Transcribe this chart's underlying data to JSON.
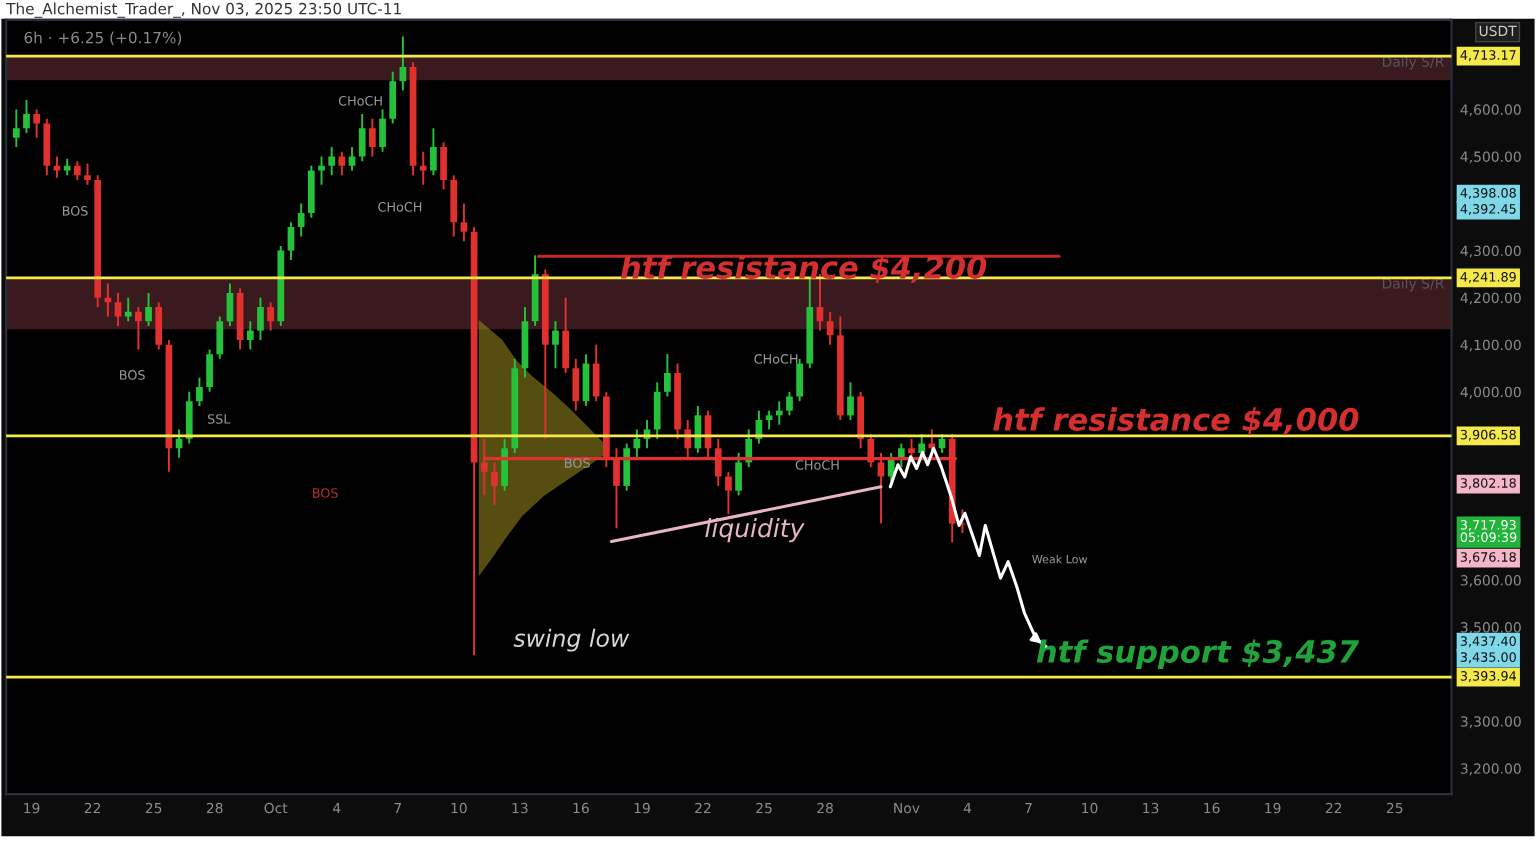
{
  "chart_data": {
    "type": "candlestick",
    "title": "6h · +6.25 (+0.17%)",
    "x": [
      "2025-09-18T06:00",
      "2025-09-18T18:00",
      "2025-09-19T06:00",
      "2025-09-19T18:00",
      "2025-09-20T06:00",
      "2025-09-20T18:00",
      "2025-09-21T06:00",
      "2025-09-21T18:00",
      "2025-09-22T06:00",
      "2025-09-22T18:00",
      "2025-09-23T06:00",
      "2025-09-23T18:00",
      "2025-09-24T06:00",
      "2025-09-24T18:00",
      "2025-09-25T06:00",
      "2025-09-25T18:00",
      "2025-09-26T06:00",
      "2025-09-26T18:00",
      "2025-09-27T06:00",
      "2025-09-27T18:00",
      "2025-09-28T06:00",
      "2025-09-28T18:00",
      "2025-09-29T06:00",
      "2025-09-29T18:00",
      "2025-09-30T06:00",
      "2025-09-30T18:00",
      "2025-10-01T06:00",
      "2025-10-01T18:00",
      "2025-10-02T06:00",
      "2025-10-02T18:00",
      "2025-10-03T06:00",
      "2025-10-03T18:00",
      "2025-10-04T06:00",
      "2025-10-04T18:00",
      "2025-10-05T06:00",
      "2025-10-05T18:00",
      "2025-10-06T06:00",
      "2025-10-06T18:00",
      "2025-10-07T06:00",
      "2025-10-07T18:00",
      "2025-10-08T06:00",
      "2025-10-08T18:00",
      "2025-10-09T06:00",
      "2025-10-09T18:00",
      "2025-10-10T06:00",
      "2025-10-10T18:00",
      "2025-10-11T06:00",
      "2025-10-11T18:00",
      "2025-10-12T06:00",
      "2025-10-12T18:00",
      "2025-10-13T06:00",
      "2025-10-13T18:00",
      "2025-10-14T06:00",
      "2025-10-14T18:00",
      "2025-10-15T06:00",
      "2025-10-15T18:00",
      "2025-10-16T06:00",
      "2025-10-16T18:00",
      "2025-10-17T06:00",
      "2025-10-17T18:00",
      "2025-10-18T06:00",
      "2025-10-18T18:00",
      "2025-10-19T06:00",
      "2025-10-19T18:00",
      "2025-10-20T06:00",
      "2025-10-20T18:00",
      "2025-10-21T06:00",
      "2025-10-21T18:00",
      "2025-10-22T06:00",
      "2025-10-22T18:00",
      "2025-10-23T06:00",
      "2025-10-23T18:00",
      "2025-10-24T06:00",
      "2025-10-24T18:00",
      "2025-10-25T06:00",
      "2025-10-25T18:00",
      "2025-10-26T06:00",
      "2025-10-26T18:00",
      "2025-10-27T06:00",
      "2025-10-27T18:00",
      "2025-10-28T06:00",
      "2025-10-28T18:00",
      "2025-10-29T06:00",
      "2025-10-29T18:00",
      "2025-10-30T06:00",
      "2025-10-30T18:00",
      "2025-10-31T06:00",
      "2025-10-31T18:00",
      "2025-11-01T06:00",
      "2025-11-01T18:00",
      "2025-11-02T06:00",
      "2025-11-02T18:00",
      "2025-11-03T06:00",
      "2025-11-03T18:00"
    ],
    "ohlc": [
      [
        4540,
        4600,
        4520,
        4560
      ],
      [
        4560,
        4620,
        4550,
        4590
      ],
      [
        4590,
        4600,
        4540,
        4570
      ],
      [
        4570,
        4580,
        4460,
        4480
      ],
      [
        4480,
        4500,
        4455,
        4470
      ],
      [
        4470,
        4495,
        4460,
        4480
      ],
      [
        4480,
        4490,
        4450,
        4460
      ],
      [
        4460,
        4485,
        4440,
        4450
      ],
      [
        4450,
        4460,
        4180,
        4200
      ],
      [
        4200,
        4230,
        4160,
        4190
      ],
      [
        4190,
        4210,
        4140,
        4160
      ],
      [
        4160,
        4200,
        4150,
        4170
      ],
      [
        4170,
        4180,
        4090,
        4150
      ],
      [
        4150,
        4210,
        4140,
        4180
      ],
      [
        4180,
        4190,
        4090,
        4100
      ],
      [
        4100,
        4110,
        3830,
        3880
      ],
      [
        3880,
        3920,
        3860,
        3900
      ],
      [
        3900,
        4000,
        3890,
        3980
      ],
      [
        3980,
        4030,
        3970,
        4010
      ],
      [
        4010,
        4090,
        4000,
        4080
      ],
      [
        4080,
        4160,
        4070,
        4150
      ],
      [
        4150,
        4230,
        4140,
        4210
      ],
      [
        4210,
        4220,
        4090,
        4110
      ],
      [
        4110,
        4150,
        4090,
        4130
      ],
      [
        4130,
        4200,
        4110,
        4180
      ],
      [
        4180,
        4190,
        4130,
        4150
      ],
      [
        4150,
        4310,
        4140,
        4300
      ],
      [
        4300,
        4360,
        4280,
        4350
      ],
      [
        4350,
        4400,
        4330,
        4380
      ],
      [
        4380,
        4480,
        4370,
        4470
      ],
      [
        4470,
        4500,
        4440,
        4480
      ],
      [
        4480,
        4520,
        4460,
        4500
      ],
      [
        4500,
        4510,
        4460,
        4480
      ],
      [
        4480,
        4520,
        4470,
        4500
      ],
      [
        4500,
        4590,
        4490,
        4560
      ],
      [
        4560,
        4580,
        4500,
        4520
      ],
      [
        4520,
        4600,
        4510,
        4580
      ],
      [
        4580,
        4680,
        4570,
        4660
      ],
      [
        4660,
        4755,
        4640,
        4690
      ],
      [
        4690,
        4700,
        4460,
        4480
      ],
      [
        4480,
        4510,
        4440,
        4470
      ],
      [
        4470,
        4560,
        4460,
        4520
      ],
      [
        4520,
        4530,
        4430,
        4450
      ],
      [
        4450,
        4460,
        4330,
        4360
      ],
      [
        4360,
        4400,
        4320,
        4340
      ],
      [
        4340,
        4350,
        3440,
        3850
      ],
      [
        3850,
        3900,
        3780,
        3830
      ],
      [
        3830,
        3850,
        3760,
        3800
      ],
      [
        3800,
        3900,
        3790,
        3880
      ],
      [
        3880,
        4070,
        3870,
        4050
      ],
      [
        4050,
        4180,
        4030,
        4150
      ],
      [
        4150,
        4290,
        4140,
        4250
      ],
      [
        4250,
        4260,
        3900,
        4100
      ],
      [
        4100,
        4150,
        4050,
        4130
      ],
      [
        4130,
        4200,
        4040,
        4050
      ],
      [
        4050,
        4070,
        3960,
        3980
      ],
      [
        3980,
        4080,
        3970,
        4060
      ],
      [
        4060,
        4100,
        3980,
        3990
      ],
      [
        3990,
        4000,
        3840,
        3860
      ],
      [
        3860,
        3880,
        3710,
        3800
      ],
      [
        3800,
        3890,
        3790,
        3880
      ],
      [
        3880,
        3920,
        3860,
        3900
      ],
      [
        3900,
        3940,
        3880,
        3920
      ],
      [
        3920,
        4020,
        3900,
        4000
      ],
      [
        4000,
        4080,
        3990,
        4040
      ],
      [
        4040,
        4060,
        3900,
        3920
      ],
      [
        3920,
        3940,
        3860,
        3880
      ],
      [
        3880,
        3970,
        3870,
        3950
      ],
      [
        3950,
        3960,
        3860,
        3880
      ],
      [
        3880,
        3900,
        3800,
        3820
      ],
      [
        3820,
        3830,
        3740,
        3790
      ],
      [
        3790,
        3870,
        3780,
        3850
      ],
      [
        3850,
        3920,
        3840,
        3900
      ],
      [
        3900,
        3960,
        3890,
        3940
      ],
      [
        3940,
        3960,
        3920,
        3950
      ],
      [
        3950,
        3980,
        3930,
        3960
      ],
      [
        3960,
        4000,
        3950,
        3990
      ],
      [
        3990,
        4070,
        3980,
        4060
      ],
      [
        4060,
        4240,
        4050,
        4180
      ],
      [
        4180,
        4250,
        4130,
        4150
      ],
      [
        4150,
        4170,
        4100,
        4120
      ],
      [
        4120,
        4160,
        3940,
        3950
      ],
      [
        3950,
        4020,
        3940,
        3990
      ],
      [
        3990,
        4000,
        3880,
        3900
      ],
      [
        3900,
        3910,
        3840,
        3850
      ],
      [
        3850,
        3870,
        3720,
        3820
      ],
      [
        3820,
        3870,
        3810,
        3860
      ],
      [
        3860,
        3890,
        3840,
        3880
      ],
      [
        3880,
        3900,
        3850,
        3870
      ],
      [
        3870,
        3910,
        3860,
        3890
      ],
      [
        3890,
        3920,
        3860,
        3880
      ],
      [
        3880,
        3910,
        3870,
        3900
      ],
      [
        3900,
        3910,
        3680,
        3720
      ],
      [
        3720,
        3750,
        3700,
        3717.93
      ]
    ],
    "colors": [
      "#26c13a",
      "#26c13a",
      "#e0312f",
      "#e0312f",
      "#e0312f",
      "#26c13a",
      "#e0312f",
      "#e0312f",
      "#e0312f",
      "#e0312f",
      "#e0312f",
      "#26c13a",
      "#e0312f",
      "#26c13a",
      "#e0312f",
      "#e0312f",
      "#26c13a",
      "#26c13a",
      "#26c13a",
      "#26c13a",
      "#26c13a",
      "#26c13a",
      "#e0312f",
      "#26c13a",
      "#26c13a",
      "#e0312f",
      "#26c13a",
      "#26c13a",
      "#26c13a",
      "#26c13a",
      "#26c13a",
      "#26c13a",
      "#e0312f",
      "#26c13a",
      "#26c13a",
      "#e0312f",
      "#26c13a",
      "#26c13a",
      "#26c13a",
      "#e0312f",
      "#e0312f",
      "#26c13a",
      "#e0312f",
      "#e0312f",
      "#e0312f",
      "#e0312f",
      "#e0312f",
      "#e0312f",
      "#26c13a",
      "#26c13a",
      "#26c13a",
      "#26c13a",
      "#e0312f",
      "#26c13a",
      "#e0312f",
      "#e0312f",
      "#26c13a",
      "#e0312f",
      "#e0312f",
      "#e0312f",
      "#26c13a",
      "#26c13a",
      "#26c13a",
      "#26c13a",
      "#26c13a",
      "#e0312f",
      "#e0312f",
      "#26c13a",
      "#e0312f",
      "#e0312f",
      "#e0312f",
      "#26c13a",
      "#26c13a",
      "#26c13a",
      "#26c13a",
      "#26c13a",
      "#26c13a",
      "#26c13a",
      "#26c13a",
      "#e0312f",
      "#e0312f",
      "#e0312f",
      "#26c13a",
      "#e0312f",
      "#e0312f",
      "#e0312f",
      "#26c13a",
      "#26c13a",
      "#e0312f",
      "#26c13a",
      "#e0312f",
      "#26c13a",
      "#e0312f",
      "#e0312f"
    ],
    "series": [
      {
        "type": "line",
        "color": "#c62828",
        "x": [
          "2025-10-13T22:00",
          "2025-11-08T12:00"
        ],
        "values": [
          4288,
          4288
        ]
      },
      {
        "type": "line",
        "color": "#e03030",
        "x": [
          "2025-10-11T06:00",
          "2025-11-03T10:00"
        ],
        "values": [
          3858,
          3858
        ]
      },
      {
        "type": "line",
        "color": "#e8b4c8",
        "x": [
          "2025-10-17T12:00",
          "2025-10-30T18:00"
        ],
        "values": [
          3682,
          3798
        ]
      },
      {
        "type": "line",
        "color": "#ffffff",
        "x": [
          "2025-10-31T05:00",
          "2025-10-31T14:00",
          "2025-10-31T22:00",
          "2025-11-01T05:00",
          "2025-11-01T12:00",
          "2025-11-01T19:00",
          "2025-11-02T01:00",
          "2025-11-02T08:00",
          "2025-11-02T17:00",
          "2025-11-03T05:00",
          "2025-11-03T14:00",
          "2025-11-03T21:00",
          "2025-11-04T07:00",
          "2025-11-04T14:00",
          "2025-11-04T21:00",
          "2025-11-05T06:00",
          "2025-11-05T15:00",
          "2025-11-06T00:00",
          "2025-11-06T10:00",
          "2025-11-06T19:00",
          "2025-11-07T09:00",
          "2025-11-07T21:00"
        ],
        "values": [
          3798,
          3845,
          3819,
          3862,
          3837,
          3871,
          3845,
          3880,
          3841,
          3776,
          3716,
          3742,
          3690,
          3652,
          3716,
          3660,
          3604,
          3639,
          3587,
          3531,
          3475,
          3458
        ]
      }
    ],
    "ref_lines": [
      {
        "axis": "y",
        "value": 4713.17,
        "label": "4,713.17",
        "color": "#f5e94a",
        "line_style": "solid"
      },
      {
        "axis": "y",
        "value": 4241.89,
        "label": "4,241.89",
        "color": "#f5e94a",
        "line_style": "solid"
      },
      {
        "axis": "y",
        "value": 3906.58,
        "label": "3,906.58",
        "color": "#f5e94a",
        "line_style": "solid"
      },
      {
        "axis": "y",
        "value": 3393.94,
        "label": "3,393.94",
        "color": "#f5e94a",
        "line_style": "solid"
      }
    ],
    "bands": [
      {
        "axis": "y",
        "from": 4662,
        "to": 4713.17,
        "label": "Daily S/R",
        "color": "#3a1a1e"
      },
      {
        "axis": "y",
        "from": 4133,
        "to": 4241.89,
        "label": "Daily S/R",
        "color": "#3a1a1e"
      }
    ],
    "annotations": [
      "The_Alchemist_Trader_, Nov 03, 2025 23:50 UTC-11",
      "USDT",
      "htf resistance $4,200",
      "htf resistance $4,000",
      "htf support $3,437",
      "liquidity",
      "swing low",
      "CHoCH",
      "CHoCH",
      "CHoCH",
      "CHoCH",
      "BOS",
      "BOS",
      "SSL",
      "BOS",
      "BOS",
      "Weak Low",
      "4,398.08",
      "4,392.45",
      "3,802.18",
      "3,717.93\n05:09:39",
      "3,676.18",
      "3,437.40",
      "3,435.00"
    ],
    "xlim": [
      "2025-09-17T18:00",
      "2025-11-27T19:00"
    ],
    "ylim": [
      3145,
      4790
    ],
    "xticks": [
      {
        "value": "2025-09-19",
        "label": "19"
      },
      {
        "value": "2025-09-22",
        "label": "22"
      },
      {
        "value": "2025-09-25",
        "label": "25"
      },
      {
        "value": "2025-09-28",
        "label": "28"
      },
      {
        "value": "2025-10-01",
        "label": "Oct"
      },
      {
        "value": "2025-10-04",
        "label": "4"
      },
      {
        "value": "2025-10-07",
        "label": "7"
      },
      {
        "value": "2025-10-10",
        "label": "10"
      },
      {
        "value": "2025-10-13",
        "label": "13"
      },
      {
        "value": "2025-10-16",
        "label": "16"
      },
      {
        "value": "2025-10-19",
        "label": "19"
      },
      {
        "value": "2025-10-22",
        "label": "22"
      },
      {
        "value": "2025-10-25",
        "label": "25"
      },
      {
        "value": "2025-10-28",
        "label": "28"
      },
      {
        "value": "2025-11-01",
        "label": "Nov"
      },
      {
        "value": "2025-11-04",
        "label": "4"
      },
      {
        "value": "2025-11-07",
        "label": "7"
      },
      {
        "value": "2025-11-10",
        "label": "10"
      },
      {
        "value": "2025-11-13",
        "label": "13"
      },
      {
        "value": "2025-11-16",
        "label": "16"
      },
      {
        "value": "2025-11-19",
        "label": "19"
      },
      {
        "value": "2025-11-22",
        "label": "22"
      },
      {
        "value": "2025-11-25",
        "label": "25"
      }
    ],
    "yticks": [
      {
        "value": 3200,
        "label": "3,200.00"
      },
      {
        "value": 3300,
        "label": "3,300.00"
      },
      {
        "value": 3500,
        "label": "3,500.00"
      },
      {
        "value": 3600,
        "label": "3,600.00"
      },
      {
        "value": 4000,
        "label": "4,000.00"
      },
      {
        "value": 4100,
        "label": "4,100.00"
      },
      {
        "value": 4200,
        "label": "4,200.00"
      },
      {
        "value": 4300,
        "label": "4,300.00"
      },
      {
        "value": 4500,
        "label": "4,500.00"
      },
      {
        "value": 4600,
        "label": "4,600.00"
      }
    ],
    "grid": false
  }
}
